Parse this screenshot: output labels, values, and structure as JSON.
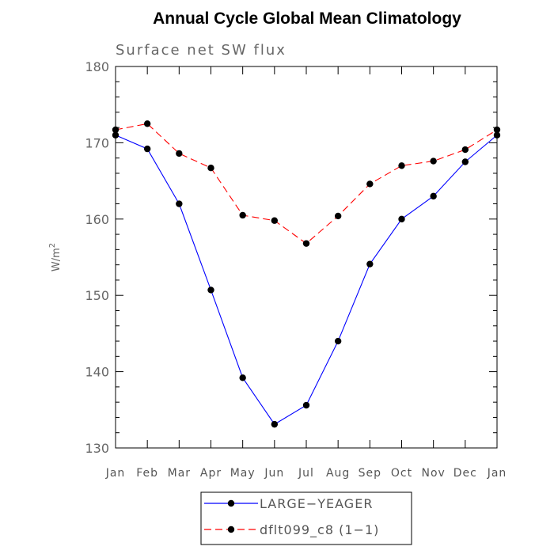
{
  "chart_data": {
    "type": "line",
    "title": "Annual Cycle Global Mean Climatology",
    "subtitle": "Surface net SW flux",
    "ylabel": "W/m",
    "ylabel_superscript": "2",
    "xlabel": "",
    "categories": [
      "Jan",
      "Feb",
      "Mar",
      "Apr",
      "May",
      "Jun",
      "Jul",
      "Aug",
      "Sep",
      "Oct",
      "Nov",
      "Dec",
      "Jan"
    ],
    "ylim": [
      130,
      180
    ],
    "yticks": [
      130,
      140,
      150,
      160,
      170,
      180
    ],
    "series": [
      {
        "name": "LARGE−YEAGER",
        "color": "#0000ff",
        "dash": "solid",
        "values": [
          171.0,
          169.2,
          162.0,
          150.7,
          139.2,
          133.1,
          135.6,
          144.0,
          154.1,
          160.0,
          163.0,
          167.5,
          171.0
        ]
      },
      {
        "name": "dflt099_c8 (1−1)",
        "color": "#ff0000",
        "dash": "dashed",
        "values": [
          171.7,
          172.5,
          168.6,
          166.7,
          160.5,
          159.8,
          156.8,
          160.4,
          164.6,
          167.0,
          167.6,
          169.1,
          171.7
        ]
      }
    ],
    "legend_position": "bottom-center",
    "grid": false
  }
}
